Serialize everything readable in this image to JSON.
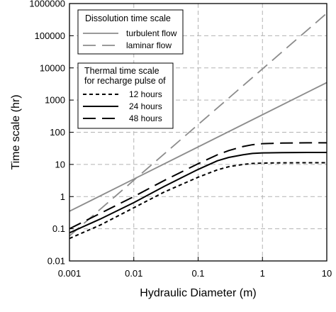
{
  "chart_data": {
    "type": "line",
    "xlabel": "Hydraulic Diameter (m)",
    "ylabel": "Time scale (hr)",
    "xscale": "log",
    "yscale": "log",
    "xlim": [
      0.001,
      10
    ],
    "ylim": [
      0.01,
      1000000
    ],
    "grid": true,
    "x_ticks": [
      "0.001",
      "0.01",
      "0.1",
      "1",
      "10"
    ],
    "y_ticks": [
      "0.01",
      "0.1",
      "1",
      "10",
      "100",
      "1000",
      "10000",
      "100000",
      "1000000"
    ],
    "legend_groups": [
      {
        "title": "Dissolution time scale",
        "placement": "top-left",
        "entries": [
          "turbulent flow",
          "laminar flow"
        ]
      },
      {
        "title_lines": [
          "Thermal time scale",
          "for recharge pulse of"
        ],
        "placement": "left",
        "entries": [
          "12 hours",
          "24 hours",
          "48 hours"
        ]
      }
    ],
    "series": [
      {
        "name": "turbulent flow",
        "color": "#8c8c8c",
        "dash": "solid",
        "x": [
          0.001,
          10
        ],
        "y": [
          0.35,
          3500
        ]
      },
      {
        "name": "laminar flow",
        "color": "#8c8c8c",
        "dash": "long-dash",
        "x": [
          0.001,
          10
        ],
        "y": [
          0.06,
          500000
        ]
      },
      {
        "name": "12 hours",
        "color": "#000000",
        "dash": "short-dash",
        "x": [
          0.001,
          0.003,
          0.01,
          0.03,
          0.1,
          0.2,
          0.3,
          0.5,
          0.7,
          1,
          2,
          5,
          10
        ],
        "y": [
          0.05,
          0.13,
          0.45,
          1.4,
          4,
          6.8,
          8.5,
          10,
          10.7,
          11,
          11.2,
          11.3,
          11.3
        ]
      },
      {
        "name": "24 hours",
        "color": "#000000",
        "dash": "solid",
        "x": [
          0.001,
          0.003,
          0.01,
          0.03,
          0.1,
          0.2,
          0.3,
          0.5,
          0.7,
          1,
          2,
          5,
          10
        ],
        "y": [
          0.075,
          0.2,
          0.65,
          2.1,
          7,
          13,
          16.5,
          20,
          22,
          22.8,
          23.3,
          23.5,
          23.5
        ]
      },
      {
        "name": "48 hours",
        "color": "#000000",
        "dash": "long-dash",
        "x": [
          0.001,
          0.003,
          0.01,
          0.03,
          0.1,
          0.2,
          0.3,
          0.5,
          0.7,
          1,
          2,
          5,
          10
        ],
        "y": [
          0.1,
          0.3,
          1,
          3.2,
          10.5,
          20,
          27,
          36,
          41,
          44,
          46,
          47,
          47
        ]
      }
    ]
  }
}
